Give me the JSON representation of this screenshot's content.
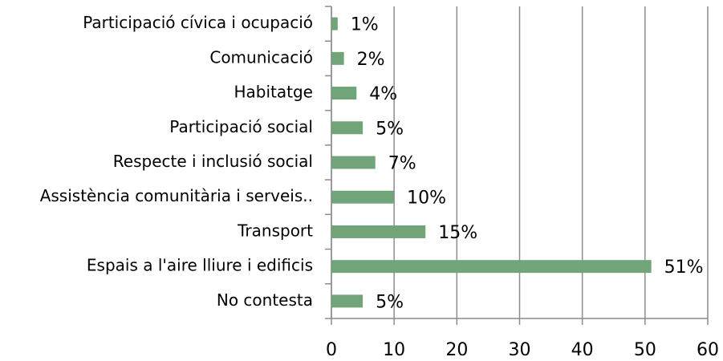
{
  "chart_data": {
    "type": "barh",
    "categories": [
      "Participació cívica i ocupació",
      "Comunicació",
      "Habitatge",
      "Participació social",
      "Respecte i inclusió social",
      "Assistència comunitària i serveis..",
      "Transport",
      "Espais a l'aire lliure i edificis",
      "No contesta"
    ],
    "values": [
      1,
      2,
      4,
      5,
      7,
      10,
      15,
      51,
      5
    ],
    "value_labels": [
      "1%",
      "2%",
      "4%",
      "5%",
      "7%",
      "10%",
      "15%",
      "51%",
      "5%"
    ],
    "color": "#72a47a",
    "xlim": [
      0,
      60
    ],
    "xticks": [
      0,
      10,
      20,
      30,
      40,
      50,
      60
    ],
    "grid": true
  }
}
